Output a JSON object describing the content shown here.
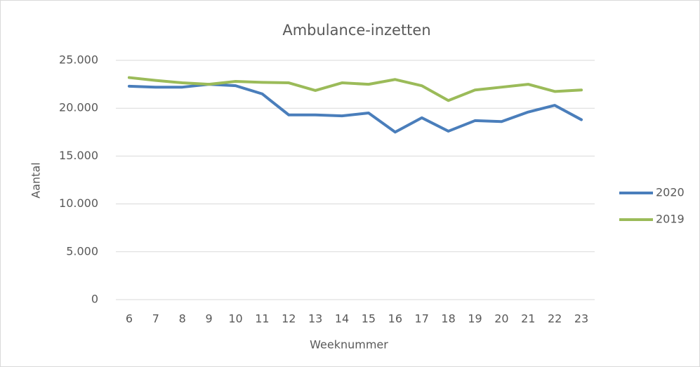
{
  "chart_data": {
    "type": "line",
    "title": "Ambulance-inzetten",
    "x_label": "Weeknummer",
    "y_label": "Aantal",
    "categories": [
      "6",
      "7",
      "8",
      "9",
      "10",
      "11",
      "12",
      "13",
      "14",
      "15",
      "16",
      "17",
      "18",
      "19",
      "20",
      "21",
      "22",
      "23"
    ],
    "series": [
      {
        "name": "2020",
        "color": "#4a7ebb",
        "values": [
          22300,
          22200,
          22200,
          22500,
          22350,
          21500,
          19300,
          19300,
          19200,
          19500,
          17500,
          19000,
          17600,
          18700,
          18600,
          19600,
          20300,
          18800
        ]
      },
      {
        "name": "2019",
        "color": "#9bbb59",
        "values": [
          23200,
          22900,
          22650,
          22500,
          22800,
          22700,
          22650,
          21850,
          22650,
          22500,
          23000,
          22350,
          20800,
          21900,
          22200,
          22500,
          21750,
          21900
        ]
      }
    ],
    "ylim": [
      0,
      25000
    ],
    "yticks": [
      0,
      {
        "value": 5000,
        "label": "5.000"
      },
      {
        "value": 10000,
        "label": "10.000"
      },
      {
        "value": 15000,
        "label": "15.000"
      },
      {
        "value": 20000,
        "label": "20.000"
      },
      {
        "value": 25000,
        "label": "25.000"
      }
    ],
    "grid": true,
    "legend": "right"
  }
}
